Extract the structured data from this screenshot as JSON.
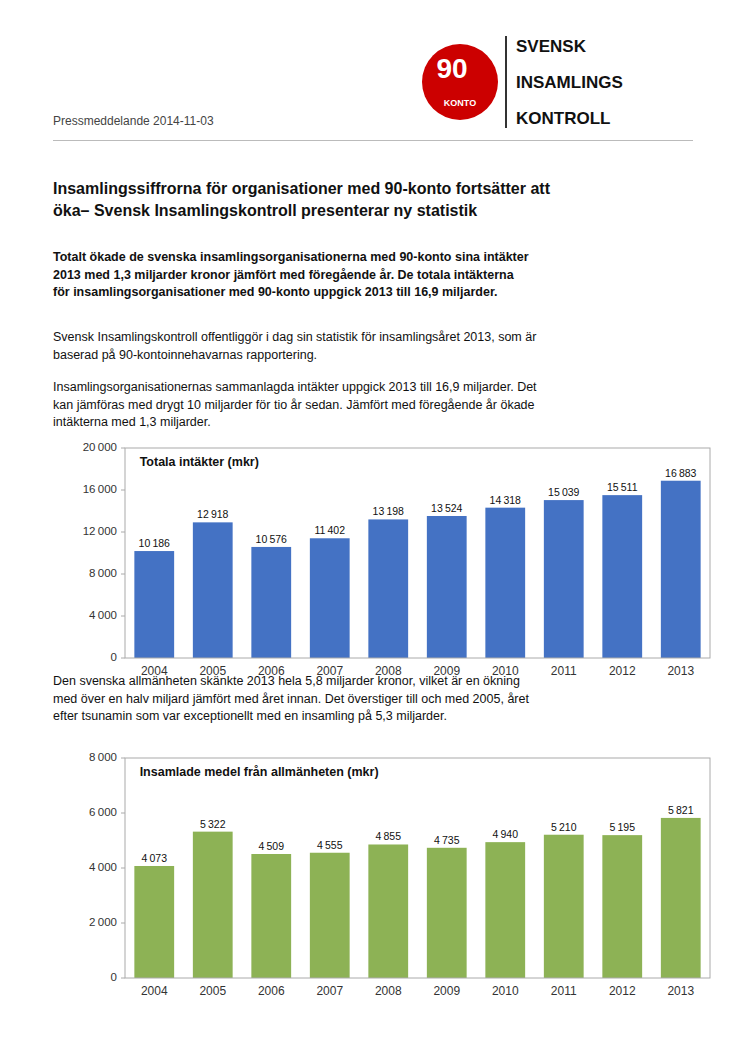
{
  "logo_color": "#CC0000",
  "logo_badge": [
    "90",
    "KONTO"
  ],
  "logo_name_lines": [
    "SVENSK",
    "INSAMLINGS",
    "KONTROLL"
  ],
  "date_text": "Pressmeddelande 2014-11-03",
  "heading_lines": [
    "Insamlingssiffrorna för organisationer med 90-konto fortsätter att",
    "öka– Svensk Insamlingskontroll presenterar ny statistik"
  ],
  "bold_paragraph_lines": [
    "Totalt ökade de svenska insamlingsorganisationerna med 90-konto sina intäkter",
    "2013 med 1,3 miljarder kronor jämfört med föregående år. De totala intäkterna",
    "för insamlingsorganisationer med 90-konto uppgick 2013 till 16,9 miljarder."
  ],
  "paragraphs": [
    [
      "Svensk Insamlingskontroll offentliggör i dag sin statistik för insamlingsåret 2013, som är",
      "baserad på 90-kontoinnehavarnas rapportering."
    ],
    [
      "Insamlingsorganisationernas sammanlagda intäkter uppgick 2013 till 16,9 miljarder. Det",
      "kan jämföras med drygt 10 miljarder för tio år sedan. Jämfört med föregående år ökade",
      "intäkterna med 1,3 miljarder."
    ],
    [
      "Den svenska allmänheten skänkte 2013 hela 5,8 miljarder kronor, vilket är en ökning",
      "med över en halv miljard jämfört med året innan. Det överstiger till och med 2005, året",
      "efter tsunamin som var exceptionellt med en insamling på 5,3 miljarder."
    ]
  ],
  "chart_data": [
    {
      "type": "bar",
      "title": "Totala intäkter (mkr)",
      "categories": [
        "2004",
        "2005",
        "2006",
        "2007",
        "2008",
        "2009",
        "2010",
        "2011",
        "2012",
        "2013"
      ],
      "values": [
        10186,
        12918,
        10576,
        11402,
        13198,
        13524,
        14318,
        15039,
        15511,
        16883
      ],
      "value_labels": [
        "10 186",
        "12 918",
        "10 576",
        "11 402",
        "13 198",
        "13 524",
        "14 318",
        "15 039",
        "15 511",
        "16 883"
      ],
      "data_labels": true,
      "color": "#4472C4",
      "ylim": [
        0,
        20000
      ],
      "yticks": [
        0,
        {
          "value": 4000,
          "label": "4 000"
        },
        {
          "value": 8000,
          "label": "8 000"
        },
        {
          "value": 12000,
          "label": "12 000"
        },
        {
          "value": 16000,
          "label": "16 000"
        },
        {
          "value": 20000,
          "label": "20 000"
        }
      ],
      "grid": false
    },
    {
      "type": "bar",
      "title": "Insamlade medel från allmänheten (mkr)",
      "categories": [
        "2004",
        "2005",
        "2006",
        "2007",
        "2008",
        "2009",
        "2010",
        "2011",
        "2012",
        "2013"
      ],
      "values": [
        4073,
        5322,
        4509,
        4555,
        4855,
        4735,
        4940,
        5210,
        5195,
        5821
      ],
      "value_labels": [
        "4 073",
        "5 322",
        "4 509",
        "4 555",
        "4 855",
        "4 735",
        "4 940",
        "5 210",
        "5 195",
        "5 821"
      ],
      "data_labels": true,
      "color": "#8DB255",
      "ylim": [
        0,
        8000
      ],
      "yticks": [
        0,
        {
          "value": 2000,
          "label": "2 000"
        },
        {
          "value": 4000,
          "label": "4 000"
        },
        {
          "value": 6000,
          "label": "6 000"
        },
        {
          "value": 8000,
          "label": "8 000"
        }
      ],
      "grid": false
    }
  ]
}
